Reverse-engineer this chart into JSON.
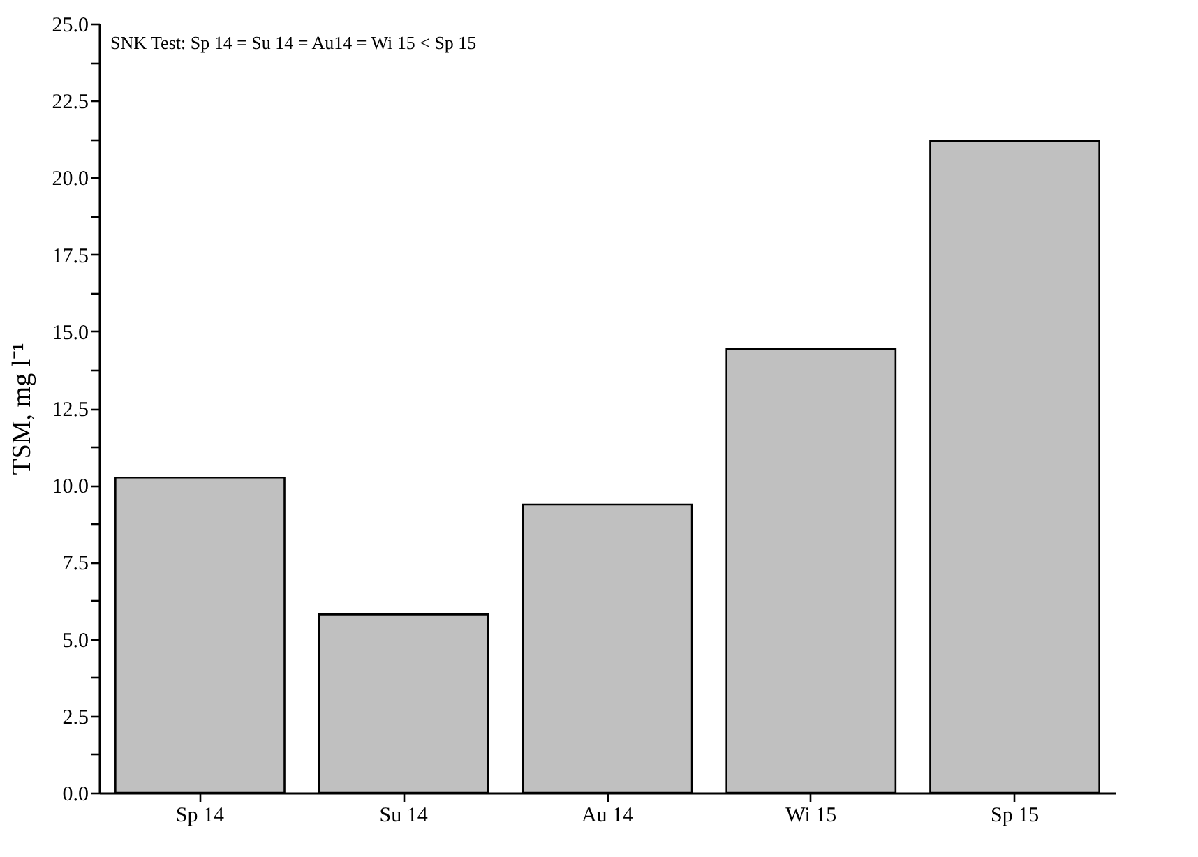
{
  "chart_data": {
    "type": "bar",
    "ylabel": "TSM, mg l⁻¹",
    "categories": [
      "Sp 14",
      "Su 14",
      "Au 14",
      "Wi 15",
      "Sp 15"
    ],
    "values": [
      10.25,
      5.8,
      9.37,
      14.43,
      21.19
    ],
    "color": "#c0c0c0",
    "ylim": [
      0,
      25
    ],
    "yticks": [
      {
        "value": 0,
        "label": "0.0"
      },
      {
        "value": 1.25,
        "label": null
      },
      2.5,
      {
        "value": 3.75,
        "label": null
      },
      {
        "value": 5,
        "label": "5.0"
      },
      {
        "value": 6.25,
        "label": null
      },
      7.5,
      {
        "value": 8.75,
        "label": null
      },
      {
        "value": 10,
        "label": "10.0"
      },
      {
        "value": 11.25,
        "label": null
      },
      12.5,
      {
        "value": 13.75,
        "label": null
      },
      {
        "value": 15,
        "label": "15.0"
      },
      {
        "value": 16.25,
        "label": null
      },
      17.5,
      {
        "value": 18.75,
        "label": null
      },
      {
        "value": 20,
        "label": "20.0"
      },
      {
        "value": 21.25,
        "label": null
      },
      22.5,
      {
        "value": 23.75,
        "label": null
      },
      {
        "value": 25,
        "label": "25.0"
      }
    ],
    "grid": false,
    "annotations": [
      "SNK Test: Sp 14 = Su 14 = Au14 = Wi 15 < Sp 15"
    ]
  }
}
